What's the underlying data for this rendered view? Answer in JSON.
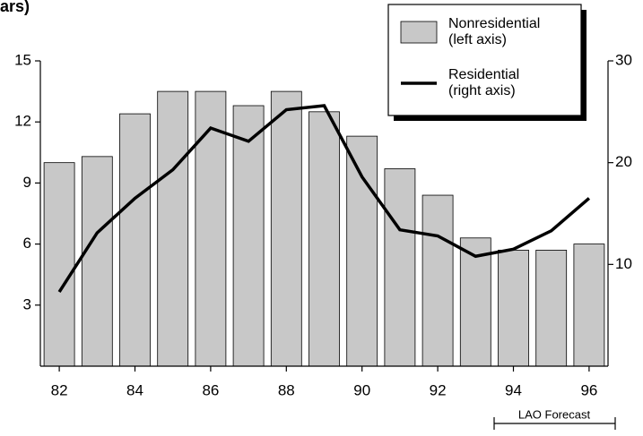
{
  "chart_data": {
    "type": "bar",
    "title": "ars)",
    "categories": [
      "82",
      null,
      "84",
      null,
      "86",
      null,
      "88",
      null,
      "90",
      null,
      "92",
      null,
      "94",
      null,
      "96"
    ],
    "series": [
      {
        "name": "Nonresidential (left axis)",
        "type": "bar",
        "axis": "y",
        "color": "#c8c8c8",
        "values": [
          10.0,
          10.3,
          12.4,
          13.5,
          13.5,
          12.8,
          13.5,
          12.5,
          11.3,
          9.7,
          8.4,
          6.3,
          5.7,
          5.7,
          6.0
        ]
      },
      {
        "name": "Residential (right axis)",
        "type": "line",
        "axis": "y2",
        "color": "#000000",
        "values": [
          7.3,
          13.1,
          16.5,
          19.3,
          23.4,
          22.1,
          25.2,
          25.6,
          18.6,
          13.4,
          12.8,
          10.8,
          11.5,
          13.3,
          16.5
        ]
      }
    ],
    "ylim": [
      0,
      15
    ],
    "yticks": [
      3,
      6,
      9,
      12,
      15
    ],
    "y2lim": [
      0,
      30
    ],
    "y2ticks": [
      10,
      20,
      30
    ],
    "grid": false,
    "legend": "top-right",
    "annotation": "LAO Forecast"
  }
}
